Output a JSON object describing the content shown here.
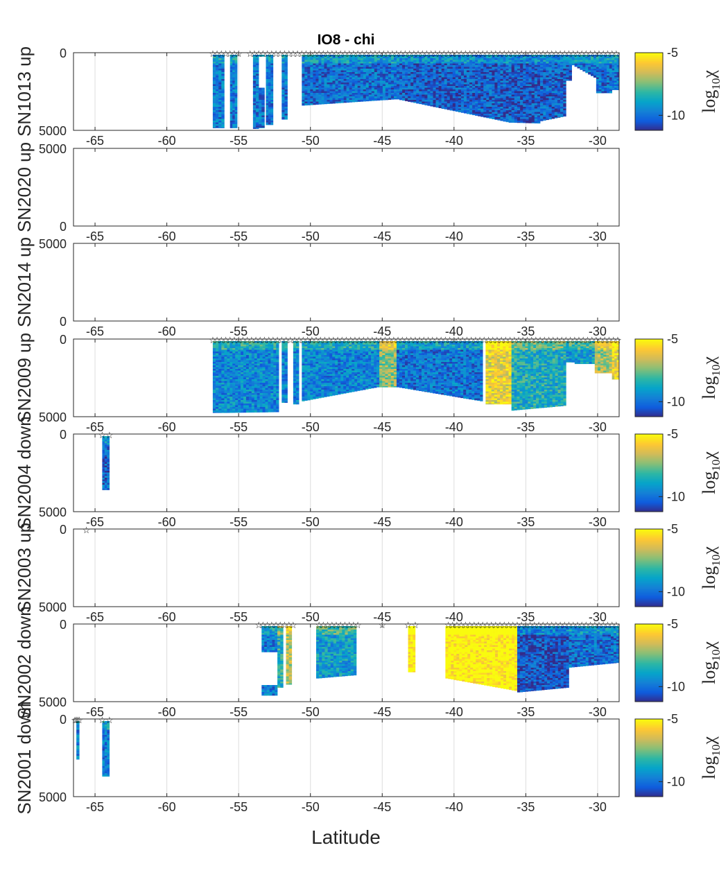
{
  "figure": {
    "title": "IO8  -  chi",
    "xlabel": "Latitude"
  },
  "colorbar": {
    "label_main": "log",
    "label_sub": "10",
    "label_sym": "χ",
    "ticks": [
      "-5",
      "-10"
    ],
    "range": [
      -11.2,
      -5
    ],
    "colors": [
      "#352a87",
      "#0f5cdd",
      "#1481d6",
      "#06a4ca",
      "#2eb7a4",
      "#87bf77",
      "#d1bb59",
      "#fec832",
      "#f9fb0e"
    ]
  },
  "chart_data": [
    {
      "type": "heatmap",
      "ylabel": "SN1013 up",
      "y_ticks": [
        "0",
        "5000"
      ],
      "x_ticks": [
        "-65",
        "-60",
        "-55",
        "-50",
        "-45",
        "-40",
        "-35",
        "-30"
      ],
      "xlim": [
        -66.5,
        -28.5
      ],
      "ylim": [
        5000,
        0
      ],
      "grid": true,
      "colorbar": true,
      "x_tick_labels_overlapped": false,
      "stations_lat": [
        -56.8,
        -56.5,
        -56.2,
        -55.9,
        -55.6,
        -55.3,
        -55.0,
        -54.2,
        -53.9,
        -53.6,
        -53.3,
        -53.0,
        -52.7,
        -52.4,
        -52.1,
        -51.8,
        -51.5,
        -51.2,
        -50.9,
        -50.6,
        -50.3,
        -50.0,
        -49.7,
        -49.4,
        -49.1,
        -48.8,
        -48.5,
        -48.2,
        -47.9,
        -47.6,
        -47.3,
        -47.0,
        -46.7,
        -46.4,
        -46.1,
        -45.8,
        -45.5,
        -45.2,
        -44.9,
        -44.6,
        -44.3,
        -44.0,
        -43.7,
        -43.4,
        -43.1,
        -42.8,
        -42.5,
        -42.2,
        -41.9,
        -41.6,
        -41.3,
        -41.0,
        -40.7,
        -40.4,
        -40.1,
        -39.8,
        -39.5,
        -39.2,
        -38.9,
        -38.6,
        -38.3,
        -38.0,
        -37.7,
        -37.4,
        -37.1,
        -36.8,
        -36.5,
        -36.2,
        -35.9,
        -35.6,
        -35.3,
        -35.0,
        -34.7,
        -34.4,
        -34.1,
        -33.8,
        -33.5,
        -33.2,
        -32.9,
        -32.6,
        -32.3,
        -32.0,
        -31.7,
        -31.4,
        -31.1,
        -30.8,
        -30.5,
        -30.2,
        -29.9,
        -29.6,
        -29.3,
        -29.0,
        -28.7
      ],
      "profiles": [
        {
          "lat0": -56.8,
          "lat1": -56.0,
          "depth": 4850,
          "mean": -9.8
        },
        {
          "lat0": -55.6,
          "lat1": -55.1,
          "depth": 4850,
          "mean": -9.8
        },
        {
          "lat0": -54.0,
          "lat1": -53.6,
          "depth": 4900,
          "mean": -9.9
        },
        {
          "lat0": -53.6,
          "lat1": -53.2,
          "depth": 4850,
          "mean": -9.9,
          "gap": [
            200,
            2200
          ]
        },
        {
          "lat0": -53.1,
          "lat1": -52.6,
          "depth": 4650,
          "mean": -9.9
        },
        {
          "lat0": -52.0,
          "lat1": -51.6,
          "depth": 4300,
          "mean": -9.9
        },
        {
          "lat0": -50.6,
          "lat1": -44.0,
          "depth": 3400,
          "depth_end": 3000,
          "mean": -10.0
        },
        {
          "lat0": -44.0,
          "lat1": -36.0,
          "depth": 3000,
          "depth_end": 4500,
          "mean": -10.3
        },
        {
          "lat0": -36.0,
          "lat1": -34.0,
          "depth": 4500,
          "depth_end": 4550,
          "mean": -10.4
        },
        {
          "lat0": -34.0,
          "lat1": -32.2,
          "depth": 4400,
          "depth_end": 4100,
          "mean": -10.3
        },
        {
          "lat0": -32.2,
          "lat1": -31.8,
          "depth": 1800,
          "mean": -10.2
        },
        {
          "lat0": -31.8,
          "lat1": -30.1,
          "depth": 800,
          "depth_end": 1600,
          "mean": -10.0
        },
        {
          "lat0": -30.1,
          "lat1": -29.0,
          "depth": 2600,
          "mean": -10.0
        },
        {
          "lat0": -29.0,
          "lat1": -28.5,
          "depth": 2400,
          "mean": -10.0
        }
      ]
    },
    {
      "type": "heatmap",
      "ylabel": "SN2020 up",
      "y_ticks": [
        "5000",
        "0"
      ],
      "x_ticks": [
        "-65",
        "-60",
        "-55",
        "-50",
        "-45",
        "-40",
        "-35",
        "-30"
      ],
      "xlim": [
        -66.5,
        -28.5
      ],
      "ylim": [
        0,
        5000
      ],
      "grid": false,
      "colorbar": false,
      "x_tick_labels_overlapped": true,
      "stations_lat": [],
      "profiles": []
    },
    {
      "type": "heatmap",
      "ylabel": "SN2014 up",
      "y_ticks": [
        "5000",
        "0"
      ],
      "x_ticks": [
        "-65",
        "-60",
        "-55",
        "-50",
        "-45",
        "-40",
        "-35",
        "-30"
      ],
      "xlim": [
        -66.5,
        -28.5
      ],
      "ylim": [
        0,
        5000
      ],
      "grid": false,
      "colorbar": false,
      "x_tick_labels_overlapped": true,
      "stations_lat": [],
      "profiles": []
    },
    {
      "type": "heatmap",
      "ylabel": "SN2009 up",
      "y_ticks": [
        "0",
        "5000"
      ],
      "x_ticks": [
        "-65",
        "-60",
        "-55",
        "-50",
        "-45",
        "-40",
        "-35",
        "-30"
      ],
      "xlim": [
        -66.5,
        -28.5
      ],
      "ylim": [
        5000,
        0
      ],
      "grid": true,
      "colorbar": true,
      "x_tick_labels_overlapped": true,
      "stations_lat": [
        -56.8,
        -56.5,
        -56.2,
        -55.9,
        -55.6,
        -55.3,
        -55.0,
        -54.7,
        -54.4,
        -54.1,
        -53.8,
        -53.5,
        -53.2,
        -52.9,
        -52.6,
        -52.3,
        -52.0,
        -51.7,
        -51.4,
        -51.1,
        -50.8,
        -50.5,
        -50.2,
        -49.9,
        -49.6,
        -49.3,
        -49.0,
        -48.7,
        -48.4,
        -48.1,
        -47.8,
        -47.5,
        -47.2,
        -46.9,
        -46.6,
        -46.3,
        -46.0,
        -45.7,
        -45.4,
        -45.1,
        -44.8,
        -44.5,
        -44.2,
        -43.9,
        -43.6,
        -43.3,
        -43.0,
        -42.7,
        -42.4,
        -42.1,
        -41.8,
        -41.5,
        -41.2,
        -40.9,
        -40.6,
        -40.3,
        -40.0,
        -39.7,
        -39.4,
        -39.1,
        -38.8,
        -38.5,
        -38.2,
        -37.9,
        -37.6,
        -37.3,
        -37.0,
        -36.7,
        -36.4,
        -36.1,
        -35.8,
        -35.5,
        -35.2,
        -34.9,
        -34.6,
        -34.3,
        -34.0,
        -33.7,
        -33.4,
        -33.1,
        -32.8,
        -32.5,
        -32.2,
        -31.9,
        -31.6,
        -31.3,
        -31.0,
        -30.7,
        -30.4,
        -30.1,
        -29.8,
        -29.5,
        -29.2,
        -28.9,
        -28.6
      ],
      "profiles": [
        {
          "lat0": -56.8,
          "lat1": -56.0,
          "depth": 4750,
          "mean": -9.5
        },
        {
          "lat0": -56.0,
          "lat1": -52.2,
          "depth": 4750,
          "depth_end": 4700,
          "mean": -9.5
        },
        {
          "lat0": -52.0,
          "lat1": -51.6,
          "depth": 4100,
          "mean": -9.6
        },
        {
          "lat0": -51.2,
          "lat1": -50.8,
          "depth": 4200,
          "mean": -9.6
        },
        {
          "lat0": -50.6,
          "lat1": -45.2,
          "depth": 4000,
          "depth_end": 3100,
          "mean": -9.6
        },
        {
          "lat0": -45.2,
          "lat1": -44.0,
          "depth": 3100,
          "mean": -7.2
        },
        {
          "lat0": -44.0,
          "lat1": -38.0,
          "depth": 3100,
          "depth_end": 4000,
          "mean": -9.9
        },
        {
          "lat0": -37.8,
          "lat1": -36.0,
          "depth": 4200,
          "mean": -6.0
        },
        {
          "lat0": -36.0,
          "lat1": -32.2,
          "depth": 4600,
          "depth_end": 4300,
          "mean": -8.6
        },
        {
          "lat0": -32.2,
          "lat1": -31.6,
          "depth": 1500,
          "mean": -9.0
        },
        {
          "lat0": -31.6,
          "lat1": -30.2,
          "depth": 1600,
          "mean": -9.0
        },
        {
          "lat0": -30.2,
          "lat1": -29.0,
          "depth": 2200,
          "mean": -7.0
        },
        {
          "lat0": -29.0,
          "lat1": -28.5,
          "depth": 2600,
          "mean": -6.0
        }
      ]
    },
    {
      "type": "heatmap",
      "ylabel": "SN2004 down",
      "y_ticks": [
        "0",
        "5000"
      ],
      "x_ticks": [
        "-65",
        "-60",
        "-55",
        "-50",
        "-45",
        "-40",
        "-35",
        "-30"
      ],
      "xlim": [
        -66.5,
        -28.5
      ],
      "ylim": [
        5000,
        0
      ],
      "grid": true,
      "colorbar": true,
      "x_tick_labels_overlapped": true,
      "stations_lat": [
        -64.5,
        -64.0
      ],
      "profiles": [
        {
          "lat0": -64.5,
          "lat1": -64.0,
          "depth": 3600,
          "mean": -10.2
        }
      ]
    },
    {
      "type": "heatmap",
      "ylabel": "SN2003 up",
      "y_ticks": [
        "0",
        "5000"
      ],
      "x_ticks": [
        "-65",
        "-60",
        "-55",
        "-50",
        "-45",
        "-40",
        "-35",
        "-30"
      ],
      "xlim": [
        -66.5,
        -28.5
      ],
      "ylim": [
        5000,
        0
      ],
      "grid": true,
      "colorbar": true,
      "x_tick_labels_overlapped": true,
      "stations_lat": [
        -65.6
      ],
      "profiles": []
    },
    {
      "type": "heatmap",
      "ylabel": "SN2002 down",
      "y_ticks": [
        "0",
        "5000"
      ],
      "x_ticks": [
        "-65",
        "-60",
        "-55",
        "-50",
        "-45",
        "-40",
        "-35",
        "-30"
      ],
      "xlim": [
        -66.5,
        -28.5
      ],
      "ylim": [
        5000,
        0
      ],
      "grid": true,
      "colorbar": true,
      "x_tick_labels_overlapped": true,
      "stations_lat": [
        -53.6,
        -53.3,
        -53.0,
        -52.7,
        -52.4,
        -52.1,
        -51.8,
        -51.5,
        -51.2,
        -49.4,
        -49.1,
        -48.8,
        -48.5,
        -48.2,
        -47.9,
        -47.6,
        -47.3,
        -47.0,
        -46.7,
        -45.0,
        -43.2,
        -42.7,
        -40.4,
        -40.1,
        -39.8,
        -39.5,
        -39.2,
        -38.9,
        -38.6,
        -38.3,
        -38.0,
        -37.7,
        -37.4,
        -37.1,
        -36.8,
        -36.5,
        -36.2,
        -35.9,
        -35.6,
        -35.3,
        -35.0,
        -34.7,
        -34.4,
        -34.1,
        -33.8,
        -33.5,
        -33.2,
        -32.9,
        -32.6,
        -32.3,
        -32.0,
        -31.7,
        -31.4,
        -31.1,
        -30.8,
        -30.5,
        -30.2,
        -29.9,
        -29.6,
        -29.3,
        -29.0,
        -28.7
      ],
      "profiles": [
        {
          "lat0": -53.4,
          "lat1": -52.3,
          "depth": 4600,
          "mean": -9.8,
          "gap": [
            1800,
            3900
          ]
        },
        {
          "lat0": -52.3,
          "lat1": -51.9,
          "depth": 4100,
          "mean": -8.5
        },
        {
          "lat0": -51.7,
          "lat1": -51.3,
          "depth": 3900,
          "mean": -6.8
        },
        {
          "lat0": -49.6,
          "lat1": -46.8,
          "depth": 3500,
          "depth_end": 3300,
          "mean": -9.0
        },
        {
          "lat0": -43.2,
          "lat1": -42.7,
          "depth": 3100,
          "mean": -5.0
        },
        {
          "lat0": -40.6,
          "lat1": -35.6,
          "depth": 3500,
          "depth_end": 4300,
          "mean": -5.0
        },
        {
          "lat0": -35.6,
          "lat1": -32.0,
          "depth": 4400,
          "depth_end": 4100,
          "mean": -10.5
        },
        {
          "lat0": -32.0,
          "lat1": -28.5,
          "depth": 2800,
          "depth_end": 2500,
          "mean": -10.0
        }
      ]
    },
    {
      "type": "heatmap",
      "ylabel": "SN2001 down",
      "y_ticks": [
        "0",
        "5000"
      ],
      "x_ticks": [
        "-65",
        "-60",
        "-55",
        "-50",
        "-45",
        "-40",
        "-35",
        "-30"
      ],
      "xlim": [
        -66.5,
        -28.5
      ],
      "ylim": [
        5000,
        0
      ],
      "grid": true,
      "colorbar": true,
      "x_tick_labels_overlapped": true,
      "stations_lat": [
        -66.4,
        -66.3,
        -66.2,
        -66.1,
        -64.5,
        -64.0
      ],
      "profiles": [
        {
          "lat0": -66.3,
          "lat1": -66.1,
          "depth": 2600,
          "mean": -9.7
        },
        {
          "lat0": -64.5,
          "lat1": -64.0,
          "depth": 3700,
          "mean": -9.8
        }
      ]
    }
  ]
}
